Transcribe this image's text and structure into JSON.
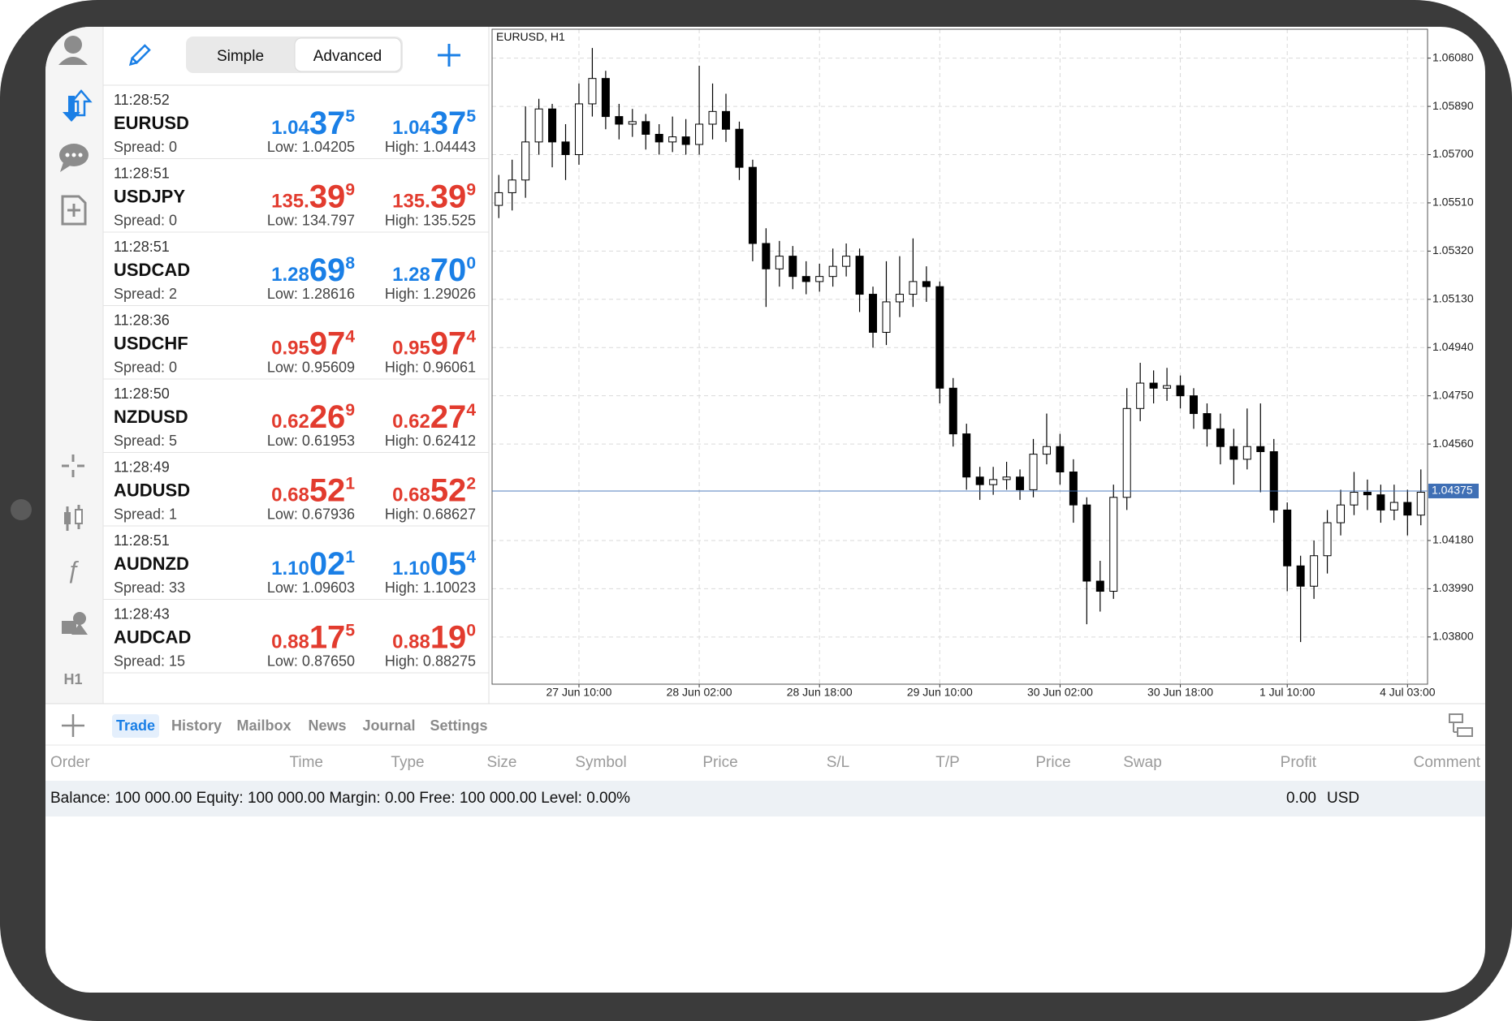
{
  "header": {
    "modes": [
      "Simple",
      "Advanced"
    ],
    "active_mode": "Advanced"
  },
  "sidebar": {
    "timeframe": "H1"
  },
  "quotes": [
    {
      "time": "11:28:52",
      "symbol": "EURUSD",
      "spread": "Spread: 0",
      "color": "#1a7fe6",
      "bid": {
        "head": "1.04",
        "big": "37",
        "tail": "5"
      },
      "ask": {
        "head": "1.04",
        "big": "37",
        "tail": "5"
      },
      "low": "Low: 1.04205",
      "high": "High: 1.04443"
    },
    {
      "time": "11:28:51",
      "symbol": "USDJPY",
      "spread": "Spread: 0",
      "color": "#e23b2e",
      "bid": {
        "head": "135.",
        "big": "39",
        "tail": "9"
      },
      "ask": {
        "head": "135.",
        "big": "39",
        "tail": "9"
      },
      "low": "Low: 134.797",
      "high": "High: 135.525"
    },
    {
      "time": "11:28:51",
      "symbol": "USDCAD",
      "spread": "Spread: 2",
      "color": "#1a7fe6",
      "bid": {
        "head": "1.28",
        "big": "69",
        "tail": "8"
      },
      "ask": {
        "head": "1.28",
        "big": "70",
        "tail": "0"
      },
      "low": "Low: 1.28616",
      "high": "High: 1.29026"
    },
    {
      "time": "11:28:36",
      "symbol": "USDCHF",
      "spread": "Spread: 0",
      "color": "#e23b2e",
      "bid": {
        "head": "0.95",
        "big": "97",
        "tail": "4"
      },
      "ask": {
        "head": "0.95",
        "big": "97",
        "tail": "4"
      },
      "low": "Low: 0.95609",
      "high": "High: 0.96061"
    },
    {
      "time": "11:28:50",
      "symbol": "NZDUSD",
      "spread": "Spread: 5",
      "color": "#e23b2e",
      "bid": {
        "head": "0.62",
        "big": "26",
        "tail": "9"
      },
      "ask": {
        "head": "0.62",
        "big": "27",
        "tail": "4"
      },
      "low": "Low: 0.61953",
      "high": "High: 0.62412"
    },
    {
      "time": "11:28:49",
      "symbol": "AUDUSD",
      "spread": "Spread: 1",
      "color": "#e23b2e",
      "bid": {
        "head": "0.68",
        "big": "52",
        "tail": "1"
      },
      "ask": {
        "head": "0.68",
        "big": "52",
        "tail": "2"
      },
      "low": "Low: 0.67936",
      "high": "High: 0.68627"
    },
    {
      "time": "11:28:51",
      "symbol": "AUDNZD",
      "spread": "Spread: 33",
      "color": "#1a7fe6",
      "bid": {
        "head": "1.10",
        "big": "02",
        "tail": "1"
      },
      "ask": {
        "head": "1.10",
        "big": "05",
        "tail": "4"
      },
      "low": "Low: 1.09603",
      "high": "High: 1.10023"
    },
    {
      "time": "11:28:43",
      "symbol": "AUDCAD",
      "spread": "Spread: 15",
      "color": "#e23b2e",
      "bid": {
        "head": "0.88",
        "big": "17",
        "tail": "5"
      },
      "ask": {
        "head": "0.88",
        "big": "19",
        "tail": "0"
      },
      "low": "Low: 0.87650",
      "high": "High: 0.88275"
    }
  ],
  "chart_data": {
    "type": "candlestick",
    "title": "EURUSD, H1",
    "open": [
      1.055,
      1.0555,
      1.056,
      1.0575,
      1.0588,
      1.0575,
      1.057,
      1.059,
      1.06,
      1.0585,
      1.0582,
      1.0583,
      1.0578,
      1.0575,
      1.0577,
      1.0574,
      1.0582,
      1.0587,
      1.058,
      1.0565,
      1.0535,
      1.0525,
      1.053,
      1.0522,
      1.052,
      1.0522,
      1.0526,
      1.053,
      1.0515,
      1.05,
      1.0512,
      1.0515,
      1.052,
      1.0518,
      1.0478,
      1.046,
      1.0443,
      1.044,
      1.0442,
      1.0443,
      1.0438,
      1.0452,
      1.0455,
      1.0445,
      1.0432,
      1.0402,
      1.0398,
      1.0435,
      1.047,
      1.048,
      1.0478,
      1.0479,
      1.0475,
      1.0468,
      1.0462,
      1.0455,
      1.045,
      1.0455,
      1.0453,
      1.043,
      1.0408,
      1.04,
      1.0412,
      1.0425,
      1.0432,
      1.0437,
      1.0436,
      1.043,
      1.0433,
      1.0428
    ],
    "high": [
      1.0562,
      1.0568,
      1.0589,
      1.0592,
      1.059,
      1.0582,
      1.0598,
      1.0612,
      1.0603,
      1.059,
      1.0588,
      1.0586,
      1.0582,
      1.0585,
      1.0584,
      1.0605,
      1.0598,
      1.0594,
      1.0583,
      1.0568,
      1.0541,
      1.0536,
      1.0534,
      1.0528,
      1.0527,
      1.0533,
      1.0535,
      1.0533,
      1.0518,
      1.0528,
      1.053,
      1.0537,
      1.0526,
      1.052,
      1.0482,
      1.0464,
      1.0447,
      1.0447,
      1.0449,
      1.0446,
      1.0458,
      1.0468,
      1.046,
      1.045,
      1.0435,
      1.041,
      1.044,
      1.0478,
      1.0488,
      1.0485,
      1.0486,
      1.0483,
      1.0478,
      1.0472,
      1.0468,
      1.0462,
      1.047,
      1.0472,
      1.0458,
      1.0433,
      1.0412,
      1.0418,
      1.043,
      1.0438,
      1.0445,
      1.0442,
      1.044,
      1.044,
      1.0438,
      1.0446
    ],
    "low": [
      1.0545,
      1.0548,
      1.0553,
      1.057,
      1.0565,
      1.056,
      1.0566,
      1.0585,
      1.058,
      1.0576,
      1.0577,
      1.0572,
      1.057,
      1.0571,
      1.057,
      1.057,
      1.0576,
      1.0575,
      1.056,
      1.0528,
      1.051,
      1.0518,
      1.0517,
      1.0515,
      1.0516,
      1.0518,
      1.0522,
      1.0508,
      1.0494,
      1.0495,
      1.0506,
      1.051,
      1.0512,
      1.0472,
      1.0455,
      1.0438,
      1.0434,
      1.0436,
      1.0438,
      1.0434,
      1.0435,
      1.0448,
      1.044,
      1.0425,
      1.0385,
      1.039,
      1.0395,
      1.043,
      1.0465,
      1.0472,
      1.0473,
      1.047,
      1.0462,
      1.0455,
      1.0448,
      1.044,
      1.0446,
      1.0437,
      1.0425,
      1.0398,
      1.0378,
      1.0395,
      1.0405,
      1.042,
      1.0428,
      1.043,
      1.0425,
      1.0426,
      1.042,
      1.0424
    ],
    "close": [
      1.0555,
      1.056,
      1.0575,
      1.0588,
      1.0575,
      1.057,
      1.059,
      1.06,
      1.0585,
      1.0582,
      1.0583,
      1.0578,
      1.0575,
      1.0577,
      1.0574,
      1.0582,
      1.0587,
      1.058,
      1.0565,
      1.0535,
      1.0525,
      1.053,
      1.0522,
      1.052,
      1.0522,
      1.0526,
      1.053,
      1.0515,
      1.05,
      1.0512,
      1.0515,
      1.052,
      1.0518,
      1.0478,
      1.046,
      1.0443,
      1.044,
      1.0442,
      1.0443,
      1.0438,
      1.0452,
      1.0455,
      1.0445,
      1.0432,
      1.0402,
      1.0398,
      1.0435,
      1.047,
      1.048,
      1.0478,
      1.0479,
      1.0475,
      1.0468,
      1.0462,
      1.0455,
      1.045,
      1.0455,
      1.0453,
      1.043,
      1.0408,
      1.04,
      1.0412,
      1.0425,
      1.0432,
      1.0437,
      1.0436,
      1.043,
      1.0433,
      1.0428,
      1.0437
    ],
    "up_color": "#ffffff",
    "down_color": "#000000",
    "ylim": [
      1.03614,
      1.06194
    ],
    "yticks": [
      {
        "value": 1.0608,
        "label": "1.06080"
      },
      {
        "value": 1.0589,
        "label": "1.05890"
      },
      {
        "value": 1.057,
        "label": "1.05700"
      },
      {
        "value": 1.0551,
        "label": "1.05510"
      },
      {
        "value": 1.0532,
        "label": "1.05320"
      },
      {
        "value": 1.0513,
        "label": "1.05130"
      },
      {
        "value": 1.0494,
        "label": "1.04940"
      },
      {
        "value": 1.0475,
        "label": "1.04750"
      },
      {
        "value": 1.0456,
        "label": "1.04560"
      },
      {
        "value": 1.0418,
        "label": "1.04180"
      },
      {
        "value": 1.0399,
        "label": "1.03990"
      },
      {
        "value": 1.038,
        "label": "1.03800"
      }
    ],
    "xticks": [
      {
        "value": 6,
        "label": "27 Jun 10:00"
      },
      {
        "value": 15,
        "label": "28 Jun 02:00"
      },
      {
        "value": 24,
        "label": "28 Jun 18:00"
      },
      {
        "value": 33,
        "label": "29 Jun 10:00"
      },
      {
        "value": 42,
        "label": "30 Jun 02:00"
      },
      {
        "value": 51,
        "label": "30 Jun 18:00"
      },
      {
        "value": 59,
        "label": "1 Jul 10:00"
      },
      {
        "value": 68,
        "label": "4 Jul 03:00"
      }
    ],
    "price_line": {
      "value": 1.04375,
      "label": "1.04375",
      "color": "#3f6fb5"
    },
    "grid": true
  },
  "tabs": [
    "Trade",
    "History",
    "Mailbox",
    "News",
    "Journal",
    "Settings"
  ],
  "active_tab": "Trade",
  "table": {
    "columns": [
      "Order",
      "Time",
      "Type",
      "Size",
      "Symbol",
      "Price",
      "S/L",
      "T/P",
      "Price",
      "Swap",
      "Profit",
      "Comment"
    ]
  },
  "summary": {
    "text": "Balance: 100 000.00 Equity: 100 000.00 Margin: 0.00 Free: 100 000.00 Level: 0.00%",
    "profit": "0.00",
    "currency": "USD"
  }
}
